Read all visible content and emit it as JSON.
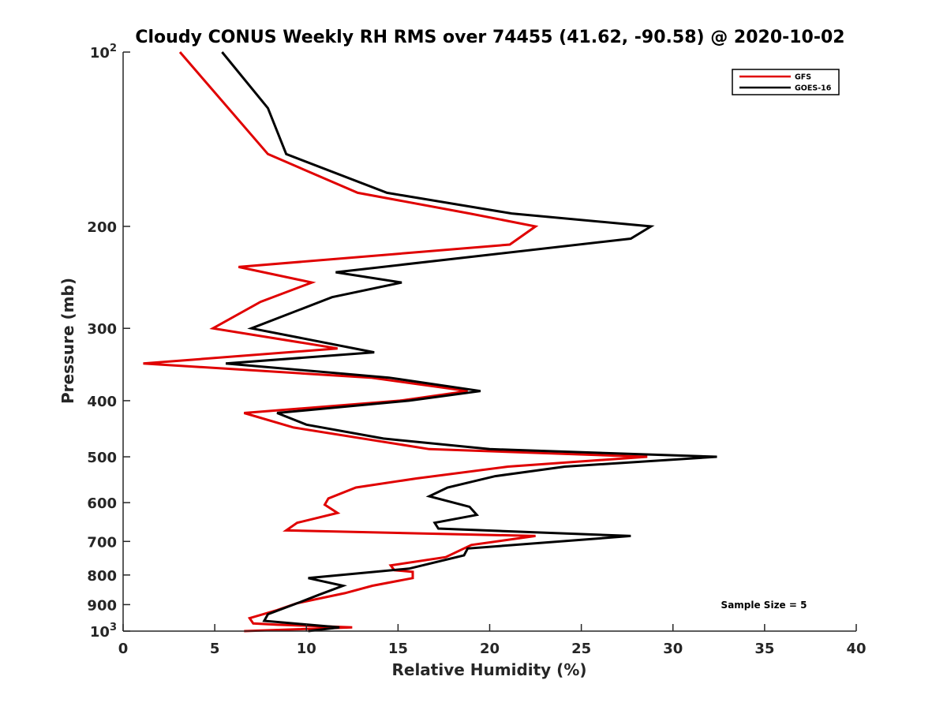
{
  "chart_data": {
    "type": "line",
    "title": "Cloudy CONUS Weekly RH RMS over 74455 (41.62, -90.58) @ 2020-10-02",
    "xlabel": "Relative Humidity (%)",
    "ylabel": "Pressure (mb)",
    "xlim": [
      0,
      40
    ],
    "ylim": [
      100,
      1000
    ],
    "y_scale": "log",
    "y_reversed": true,
    "grid": false,
    "legend_position": "top-right",
    "x_ticks": [
      {
        "value": 0,
        "label": "0"
      },
      {
        "value": 5,
        "label": "5"
      },
      {
        "value": 10,
        "label": "10"
      },
      {
        "value": 15,
        "label": "15"
      },
      {
        "value": 20,
        "label": "20"
      },
      {
        "value": 25,
        "label": "25"
      },
      {
        "value": 30,
        "label": "30"
      },
      {
        "value": 35,
        "label": "35"
      },
      {
        "value": 40,
        "label": "40"
      }
    ],
    "y_ticks": [
      {
        "value": 100,
        "base": "10",
        "exp": "2"
      },
      {
        "value": 200,
        "label": "200"
      },
      {
        "value": 300,
        "label": "300"
      },
      {
        "value": 400,
        "label": "400"
      },
      {
        "value": 500,
        "label": "500"
      },
      {
        "value": 600,
        "label": "600"
      },
      {
        "value": 700,
        "label": "700"
      },
      {
        "value": 800,
        "label": "800"
      },
      {
        "value": 900,
        "label": "900"
      },
      {
        "value": 1000,
        "base": "10",
        "exp": "3"
      }
    ],
    "annotation": "Sample Size = 5",
    "series": [
      {
        "name": "GFS",
        "color": "#e00000",
        "points": [
          [
            3.1,
            100
          ],
          [
            7.9,
            150
          ],
          [
            12.8,
            175
          ],
          [
            18.9,
            190
          ],
          [
            22.5,
            200
          ],
          [
            21.1,
            215
          ],
          [
            6.3,
            235
          ],
          [
            10.3,
            250
          ],
          [
            7.5,
            270
          ],
          [
            4.9,
            300
          ],
          [
            11.7,
            325
          ],
          [
            1.1,
            345
          ],
          [
            13.5,
            365
          ],
          [
            18.8,
            385
          ],
          [
            15.1,
            400
          ],
          [
            6.6,
            420
          ],
          [
            9.3,
            445
          ],
          [
            16.7,
            485
          ],
          [
            28.6,
            500
          ],
          [
            21.0,
            520
          ],
          [
            16.0,
            545
          ],
          [
            12.7,
            565
          ],
          [
            11.2,
            590
          ],
          [
            11.0,
            605
          ],
          [
            11.7,
            625
          ],
          [
            9.5,
            650
          ],
          [
            8.9,
            670
          ],
          [
            22.5,
            685
          ],
          [
            19.0,
            710
          ],
          [
            17.6,
            745
          ],
          [
            14.6,
            770
          ],
          [
            14.8,
            785
          ],
          [
            15.8,
            790
          ],
          [
            15.8,
            810
          ],
          [
            13.6,
            835
          ],
          [
            12.1,
            860
          ],
          [
            9.5,
            895
          ],
          [
            8.4,
            920
          ],
          [
            6.9,
            950
          ],
          [
            7.1,
            970
          ],
          [
            8.4,
            975
          ],
          [
            12.5,
            985
          ],
          [
            6.6,
            1000
          ]
        ]
      },
      {
        "name": "GOES-16",
        "color": "#000000",
        "points": [
          [
            5.4,
            100
          ],
          [
            7.9,
            125
          ],
          [
            8.9,
            150
          ],
          [
            14.4,
            175
          ],
          [
            21.2,
            190
          ],
          [
            28.8,
            200
          ],
          [
            27.7,
            210
          ],
          [
            11.6,
            240
          ],
          [
            15.2,
            250
          ],
          [
            11.4,
            265
          ],
          [
            7.0,
            300
          ],
          [
            13.7,
            330
          ],
          [
            5.6,
            345
          ],
          [
            14.5,
            365
          ],
          [
            19.5,
            385
          ],
          [
            15.6,
            400
          ],
          [
            8.4,
            420
          ],
          [
            10.0,
            440
          ],
          [
            14.2,
            465
          ],
          [
            20.0,
            485
          ],
          [
            32.4,
            500
          ],
          [
            24.1,
            520
          ],
          [
            20.3,
            540
          ],
          [
            17.7,
            565
          ],
          [
            16.7,
            585
          ],
          [
            18.9,
            610
          ],
          [
            19.3,
            630
          ],
          [
            17.0,
            650
          ],
          [
            17.2,
            665
          ],
          [
            27.7,
            685
          ],
          [
            18.8,
            720
          ],
          [
            18.6,
            740
          ],
          [
            15.6,
            780
          ],
          [
            10.1,
            810
          ],
          [
            12.0,
            835
          ],
          [
            10.7,
            865
          ],
          [
            9.7,
            890
          ],
          [
            7.9,
            935
          ],
          [
            7.7,
            960
          ],
          [
            9.3,
            970
          ],
          [
            11.8,
            985
          ],
          [
            10.1,
            1000
          ]
        ]
      }
    ]
  }
}
